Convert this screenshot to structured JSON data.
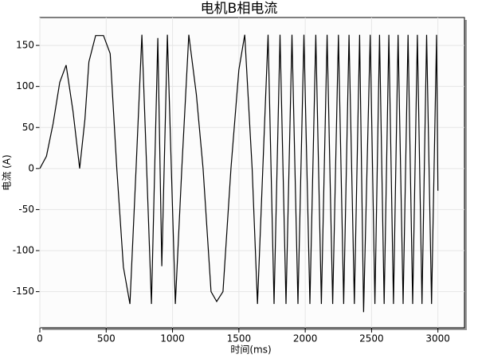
{
  "chart_data": {
    "type": "line",
    "title": "电机B相电流",
    "x_label": "时间(ms)",
    "y_label": "电流 (A)",
    "series": [
      {
        "name": "B相电流",
        "color": "#000000",
        "x": [
          0,
          50,
          100,
          150,
          198,
          250,
          300,
          340,
          370,
          420,
          480,
          530,
          580,
          630,
          679,
          725,
          769,
          805,
          841,
          889,
          919,
          961,
          1021,
          1070,
          1123,
          1180,
          1230,
          1290,
          1333,
          1380,
          1440,
          1500,
          1544,
          1600,
          1640,
          1720,
          1765,
          1810,
          1855,
          1900,
          1945,
          1990,
          2035,
          2080,
          2122,
          2165,
          2207,
          2250,
          2290,
          2330,
          2370,
          2410,
          2440,
          2490,
          2525,
          2560,
          2595,
          2630,
          2665,
          2700,
          2738,
          2775,
          2810,
          2845,
          2880,
          2915,
          2952,
          2990,
          3000
        ],
        "values": [
          0,
          15,
          55,
          105,
          126,
          70,
          0,
          60,
          130,
          162,
          162,
          140,
          0,
          -120,
          -165,
          0,
          163,
          0,
          -165,
          159,
          -119,
          163,
          -165,
          0,
          163,
          90,
          0,
          -150,
          -162,
          -150,
          0,
          120,
          163,
          0,
          -165,
          163,
          -165,
          163,
          -165,
          163,
          -165,
          163,
          -165,
          163,
          -165,
          163,
          -165,
          163,
          -165,
          163,
          -165,
          163,
          -175,
          163,
          -165,
          163,
          -165,
          163,
          -165,
          163,
          -165,
          163,
          -165,
          163,
          -165,
          163,
          -165,
          163,
          -27
        ]
      }
    ],
    "xlim": [
      0,
      3200
    ],
    "ylim": [
      -194,
      184
    ],
    "xticks": [
      0,
      500,
      1000,
      1500,
      2000,
      2500,
      3000
    ],
    "yticks": [
      -150,
      -100,
      -50,
      0,
      50,
      100,
      150
    ],
    "grid": true
  }
}
